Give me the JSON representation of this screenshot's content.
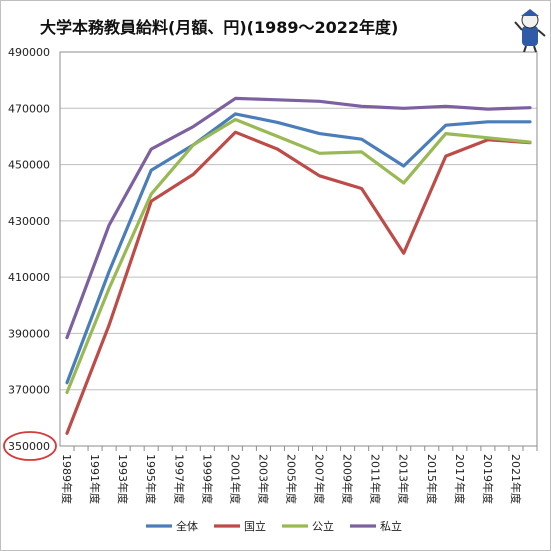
{
  "chart_data": {
    "type": "line",
    "title": "大学本務教員給料(月額、円)(1989〜2022年度)",
    "x": [
      1989,
      1990,
      1991,
      1992,
      1993,
      1994,
      1995,
      1996,
      1997,
      1998,
      1999,
      2000,
      2001,
      2002,
      2003,
      2004,
      2005,
      2006,
      2007,
      2008,
      2009,
      2010,
      2011,
      2012,
      2013,
      2014,
      2015,
      2016,
      2017,
      2018,
      2019,
      2020,
      2021,
      2022
    ],
    "categories": [
      "1989年度",
      "1991年度",
      "1993年度",
      "1995年度",
      "1997年度",
      "1999年度",
      "2001年度",
      "2003年度",
      "2005年度",
      "2007年度",
      "2009年度",
      "2011年度",
      "2013年度",
      "2015年度",
      "2017年度",
      "2019年度",
      "2021年度"
    ],
    "ylim": [
      350000,
      490000
    ],
    "yticks": [
      "350000",
      "370000",
      "390000",
      "410000",
      "430000",
      "450000",
      "470000",
      "490000"
    ],
    "legend_position": "bottom",
    "grid": true,
    "highlight_tick": "350000",
    "series": [
      {
        "name": "全体",
        "color": "#4a7ebb",
        "points": [
          [
            1989,
            372500
          ],
          [
            1992,
            412000
          ],
          [
            1995,
            448000
          ],
          [
            1998,
            457000
          ],
          [
            2001,
            468000
          ],
          [
            2004,
            465000
          ],
          [
            2007,
            461000
          ],
          [
            2010,
            459000
          ],
          [
            2013,
            449500
          ],
          [
            2016,
            464000
          ],
          [
            2019,
            465200
          ],
          [
            2022,
            465200
          ]
        ]
      },
      {
        "name": "国立",
        "color": "#be4b48",
        "points": [
          [
            1989,
            354500
          ],
          [
            1992,
            393000
          ],
          [
            1995,
            437000
          ],
          [
            1998,
            446500
          ],
          [
            2001,
            461500
          ],
          [
            2004,
            455500
          ],
          [
            2007,
            446000
          ],
          [
            2010,
            441500
          ],
          [
            2013,
            418500
          ],
          [
            2016,
            453000
          ],
          [
            2019,
            458800
          ],
          [
            2022,
            457800
          ]
        ]
      },
      {
        "name": "公立",
        "color": "#98b954",
        "points": [
          [
            1989,
            369000
          ],
          [
            1992,
            406000
          ],
          [
            1995,
            439500
          ],
          [
            1998,
            457000
          ],
          [
            2001,
            466000
          ],
          [
            2004,
            460000
          ],
          [
            2007,
            454000
          ],
          [
            2010,
            454500
          ],
          [
            2013,
            443500
          ],
          [
            2016,
            461000
          ],
          [
            2019,
            459500
          ],
          [
            2022,
            458000
          ]
        ]
      },
      {
        "name": "私立",
        "color": "#7d60a0",
        "points": [
          [
            1989,
            388500
          ],
          [
            1992,
            428500
          ],
          [
            1995,
            455500
          ],
          [
            1998,
            463500
          ],
          [
            2001,
            473500
          ],
          [
            2004,
            473000
          ],
          [
            2007,
            472500
          ],
          [
            2010,
            470700
          ],
          [
            2013,
            470000
          ],
          [
            2016,
            470700
          ],
          [
            2019,
            469700
          ],
          [
            2022,
            470200
          ]
        ]
      }
    ]
  }
}
